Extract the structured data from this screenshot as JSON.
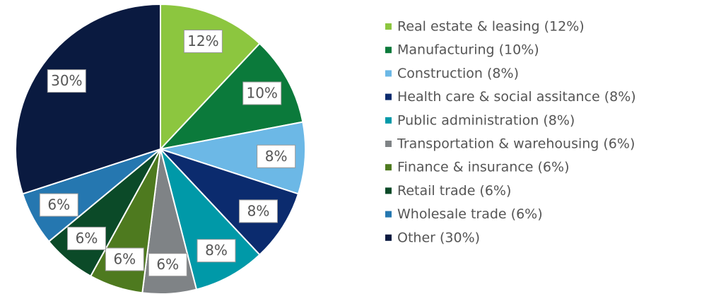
{
  "chart_data": {
    "type": "pie",
    "categories": [
      "Real estate & leasing (12%)",
      "Manufacturing (10%)",
      "Construction (8%)",
      "Health care & social assitance (8%)",
      "Public administration (8%)",
      "Transportation & warehousing (6%)",
      "Finance & insurance (6%)",
      "Retail trade (6%)",
      "Wholesale trade (6%)",
      "Other (30%)"
    ],
    "values": [
      12,
      10,
      8,
      8,
      8,
      6,
      6,
      6,
      6,
      30
    ],
    "value_labels": [
      "12%",
      "10%",
      "8%",
      "8%",
      "8%",
      "6%",
      "6%",
      "6%",
      "6%",
      "30%"
    ],
    "colors": [
      "#8cc63f",
      "#0b7a3b",
      "#6cb8e6",
      "#0b2b6e",
      "#0099a8",
      "#7f8386",
      "#4e7a1f",
      "#0b4a28",
      "#2577b0",
      "#0a1a40"
    ]
  }
}
